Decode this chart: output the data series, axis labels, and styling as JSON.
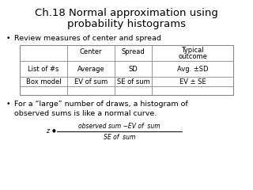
{
  "title_line1": "Ch.18 Normal approximation using",
  "title_line2": "probability histograms",
  "title_fontsize": 9.5,
  "bg_color": "#ffffff",
  "bullet1": "Review measures of center and spread",
  "table_col0": [
    "",
    "List of #s",
    "Box model"
  ],
  "table_col1": [
    "Center",
    "Average",
    "EV of sum"
  ],
  "table_col2": [
    "Spread",
    "SD",
    "SE of sum"
  ],
  "table_col3_line1": [
    "Typical",
    "Avg. ±SD",
    "EV ± SE"
  ],
  "table_col3_line2": [
    "outcome",
    "",
    ""
  ],
  "bullet2_line1": "For a “large” number of draws, a histogram of",
  "bullet2_line2": "observed sums is like a normal curve.",
  "formula_num": "observed sum −EV of  sum",
  "formula_den": "SE of  sum",
  "text_color": "#000000",
  "table_border_color": "#aaaaaa",
  "font_size_bullet": 6.8,
  "font_size_table": 6.0,
  "font_size_formula": 5.5
}
